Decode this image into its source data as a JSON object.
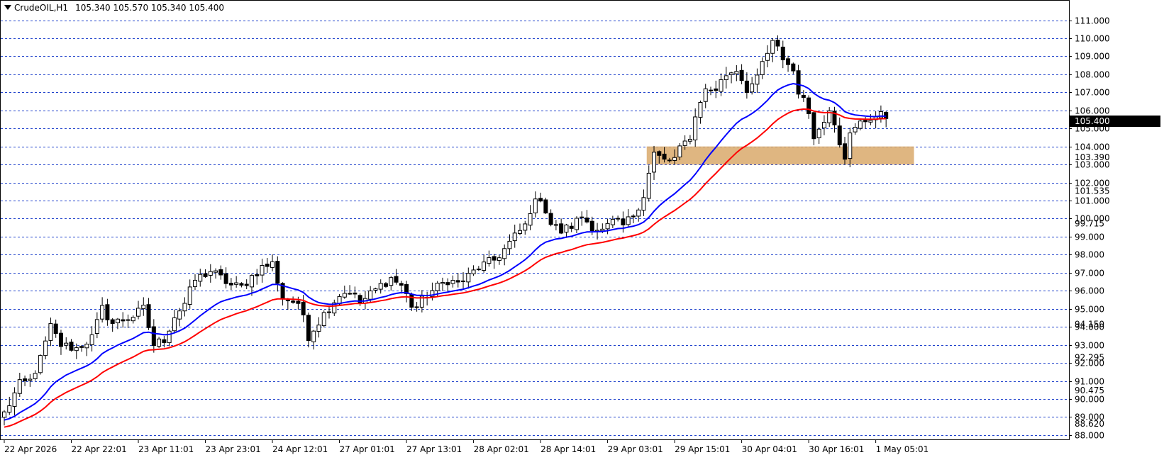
{
  "header": {
    "symbol": "CrudeOIL,H1",
    "ohlc": "105.340 105.570 105.340 105.400"
  },
  "colors": {
    "background": "#ffffff",
    "grid": "#2244cc",
    "candle": "#000000",
    "ma_fast": "#0000ff",
    "ma_slow": "#ff0000",
    "zone": "#d9a96b",
    "price_tag_bg": "#000000"
  },
  "chart_data": {
    "type": "candlestick",
    "title": "CrudeOIL,H1",
    "ylim": [
      88.0,
      111.0
    ],
    "y_ticks": [
      "111.000",
      "110.000",
      "109.000",
      "108.000",
      "107.000",
      "106.000",
      "105.000",
      "104.000",
      "103.000",
      "102.000",
      "101.000",
      "100.000",
      "99.000",
      "98.000",
      "97.000",
      "96.000",
      "95.000",
      "94.000",
      "93.000",
      "92.000",
      "91.000",
      "90.000",
      "89.000",
      "88.000"
    ],
    "y_tick_values": [
      111,
      110,
      109,
      108,
      107,
      106,
      105,
      104,
      103,
      102,
      101,
      100,
      99,
      98,
      97,
      96,
      95,
      94,
      93,
      92,
      91,
      90,
      89,
      88
    ],
    "x_labels": [
      "22 Apr 2026",
      "22 Apr 22:01",
      "23 Apr 11:01",
      "23 Apr 23:01",
      "24 Apr 12:01",
      "27 Apr 01:01",
      "27 Apr 13:01",
      "28 Apr 02:01",
      "28 Apr 14:01",
      "29 Apr 03:01",
      "29 Apr 15:01",
      "30 Apr 04:01",
      "30 Apr 16:01",
      "1 May 05:01"
    ],
    "x_label_bars": [
      0,
      13,
      26,
      39,
      52,
      65,
      78,
      91,
      104,
      117,
      130,
      143,
      156,
      169
    ],
    "extra_price_labels": [
      {
        "text": "103.390",
        "value": 103.39
      },
      {
        "text": "101.535",
        "value": 101.535
      },
      {
        "text": "99.715",
        "value": 99.715
      },
      {
        "text": "94.150",
        "value": 94.15
      },
      {
        "text": "92.295",
        "value": 92.295
      },
      {
        "text": "90.475",
        "value": 90.475
      },
      {
        "text": "88.620",
        "value": 88.62
      }
    ],
    "current_price": {
      "text": "105.400",
      "value": 105.4
    },
    "zone": {
      "from_bar": 125,
      "to_bar": 176,
      "low": 103.0,
      "high": 104.0
    },
    "bar_count": 172,
    "anchors": [
      [
        0,
        89.2
      ],
      [
        3,
        90.8
      ],
      [
        5,
        91.0
      ],
      [
        7,
        92.2
      ],
      [
        9,
        94.0
      ],
      [
        11,
        93.0
      ],
      [
        14,
        92.8
      ],
      [
        17,
        93.4
      ],
      [
        19,
        95.0
      ],
      [
        21,
        94.2
      ],
      [
        25,
        94.6
      ],
      [
        27,
        95.0
      ],
      [
        29,
        93.0
      ],
      [
        31,
        93.3
      ],
      [
        33,
        94.6
      ],
      [
        35,
        95.3
      ],
      [
        37,
        96.6
      ],
      [
        40,
        97.1
      ],
      [
        42,
        96.7
      ],
      [
        44,
        96.3
      ],
      [
        46,
        96.2
      ],
      [
        48,
        96.8
      ],
      [
        50,
        97.3
      ],
      [
        52,
        97.5
      ],
      [
        54,
        95.6
      ],
      [
        56,
        95.4
      ],
      [
        58,
        94.7
      ],
      [
        59,
        93.5
      ],
      [
        61,
        94.3
      ],
      [
        63,
        95.1
      ],
      [
        65,
        95.8
      ],
      [
        67,
        96.0
      ],
      [
        69,
        95.3
      ],
      [
        71,
        95.8
      ],
      [
        73,
        96.3
      ],
      [
        75,
        96.7
      ],
      [
        77,
        96.3
      ],
      [
        79,
        95.2
      ],
      [
        80,
        95.1
      ],
      [
        82,
        95.8
      ],
      [
        84,
        96.2
      ],
      [
        86,
        96.6
      ],
      [
        88,
        96.4
      ],
      [
        90,
        96.8
      ],
      [
        92,
        97.3
      ],
      [
        95,
        97.7
      ],
      [
        97,
        98.3
      ],
      [
        99,
        99.0
      ],
      [
        101,
        99.6
      ],
      [
        102,
        100.5
      ],
      [
        104,
        101.2
      ],
      [
        106,
        99.7
      ],
      [
        108,
        99.3
      ],
      [
        110,
        99.6
      ],
      [
        112,
        100.1
      ],
      [
        114,
        99.6
      ],
      [
        116,
        99.3
      ],
      [
        118,
        99.8
      ],
      [
        120,
        99.6
      ],
      [
        122,
        100.2
      ],
      [
        124,
        101.3
      ],
      [
        125,
        102.5
      ],
      [
        126,
        103.6
      ],
      [
        128,
        103.2
      ],
      [
        130,
        103.3
      ],
      [
        131,
        103.8
      ],
      [
        133,
        104.6
      ],
      [
        134,
        105.6
      ],
      [
        135,
        106.6
      ],
      [
        136,
        107.1
      ],
      [
        138,
        107.2
      ],
      [
        140,
        108.0
      ],
      [
        142,
        108.3
      ],
      [
        144,
        107.2
      ],
      [
        146,
        107.7
      ],
      [
        147,
        108.6
      ],
      [
        149,
        109.7
      ],
      [
        150,
        109.4
      ],
      [
        151,
        108.9
      ],
      [
        153,
        108.2
      ],
      [
        154,
        107.1
      ],
      [
        156,
        105.9
      ],
      [
        157,
        104.7
      ],
      [
        158,
        104.9
      ],
      [
        159,
        105.4
      ],
      [
        160,
        106.2
      ],
      [
        161,
        105.4
      ],
      [
        162,
        104.3
      ],
      [
        163,
        103.5
      ],
      [
        164,
        104.6
      ],
      [
        166,
        105.3
      ],
      [
        168,
        105.6
      ],
      [
        170,
        105.7
      ],
      [
        172,
        105.6
      ],
      [
        174,
        105.5
      ],
      [
        176,
        105.4
      ],
      [
        177,
        105.4
      ]
    ],
    "series": [
      {
        "name": "",
        "kind": "ma",
        "color": "#0000ff",
        "period": 20
      },
      {
        "name": "",
        "kind": "ma",
        "color": "#ff0000",
        "period": 34
      }
    ]
  }
}
